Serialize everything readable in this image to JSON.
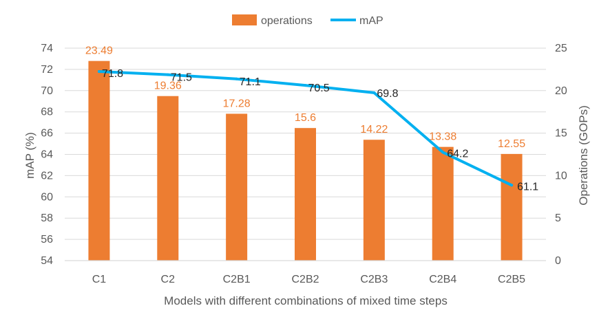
{
  "chart_data": {
    "type": "bar",
    "title": "",
    "categories": [
      "C1",
      "C2",
      "C2B1",
      "C2B2",
      "C2B3",
      "C2B4",
      "C2B5"
    ],
    "series": [
      {
        "name": "operations",
        "type": "bar",
        "axis": "right",
        "values": [
          23.49,
          19.36,
          17.28,
          15.6,
          14.22,
          13.38,
          12.55
        ],
        "labels": [
          "23.49",
          "19.36",
          "17.28",
          "15.6",
          "14.22",
          "13.38",
          "12.55"
        ]
      },
      {
        "name": "mAP",
        "type": "line",
        "axis": "left",
        "values": [
          71.8,
          71.5,
          71.1,
          70.5,
          69.8,
          64.2,
          61.1
        ],
        "labels": [
          "71.8",
          "71.5",
          "71.1",
          "70.5",
          "69.8",
          "64.2",
          "61.1"
        ]
      }
    ],
    "xlabel": "Models with different combinations of mixed time steps",
    "ylabel": "mAP (%)",
    "y2label": "Operations (GOPs)",
    "ylim": [
      54,
      74
    ],
    "y2lim": [
      0,
      25
    ],
    "yticks": [
      "54",
      "56",
      "58",
      "60",
      "62",
      "64",
      "66",
      "68",
      "70",
      "72",
      "74"
    ],
    "y2ticks": [
      "0",
      "5",
      "10",
      "15",
      "20",
      "25"
    ],
    "grid": true,
    "legend_position": "top-center",
    "colors": {
      "operations": "#ED7D31",
      "mAP": "#00B0F0",
      "bar_label": "#ED7D31",
      "line_label": "#262626",
      "axis_text": "#595959",
      "grid": "#D9D9D9"
    }
  }
}
